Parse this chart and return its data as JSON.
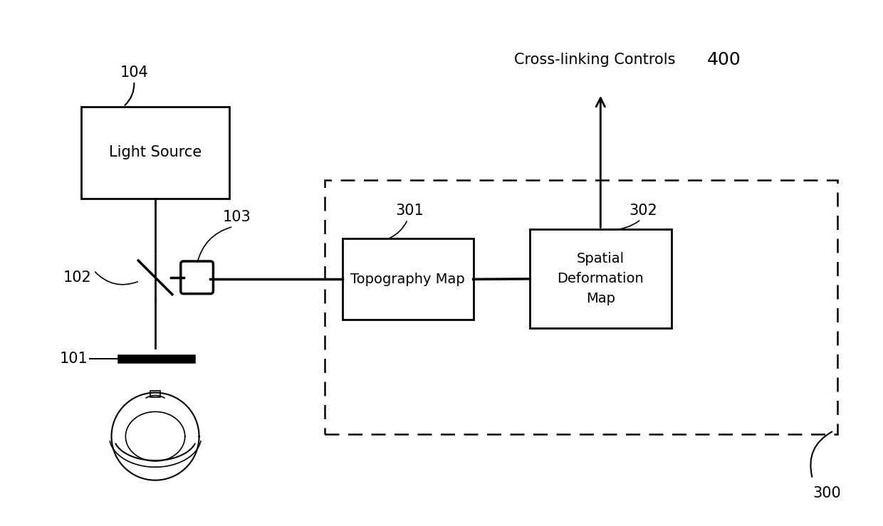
{
  "fig_width": 12.4,
  "fig_height": 7.39,
  "bg_color": "#ffffff",
  "label_400": "400",
  "label_300": "300",
  "label_104": "104",
  "label_103": "103",
  "label_102": "102",
  "label_101": "101",
  "label_301": "301",
  "label_302": "302",
  "crosslinking_text": "Cross-linking Controls",
  "light_source_text": "Light Source",
  "topography_text": "Topography Map",
  "spatial_text": "Spatial\nDeformation\nMap"
}
